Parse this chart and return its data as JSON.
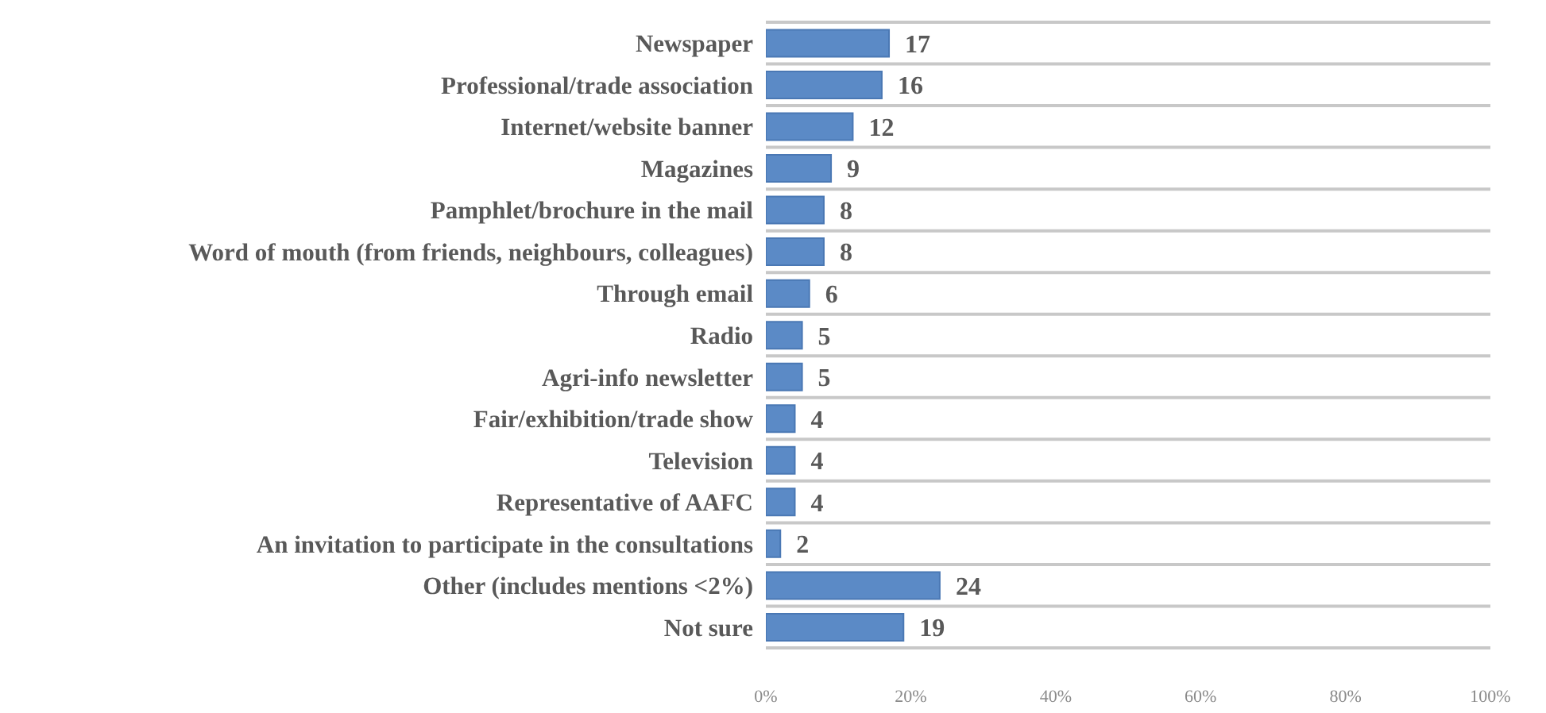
{
  "chart_data": {
    "type": "bar",
    "orientation": "horizontal",
    "categories": [
      "Newspaper",
      "Professional/trade association",
      "Internet/website banner",
      "Magazines",
      "Pamphlet/brochure in the mail",
      "Word of mouth (from friends, neighbours, colleagues)",
      "Through email",
      "Radio",
      "Agri-info newsletter",
      "Fair/exhibition/trade show",
      "Television",
      "Representative of AAFC",
      "An invitation to participate in the consultations",
      "Other (includes mentions <2%)",
      "Not sure"
    ],
    "values": [
      17,
      16,
      12,
      9,
      8,
      8,
      6,
      5,
      5,
      4,
      4,
      4,
      2,
      24,
      19
    ],
    "color": "#5b8ac6",
    "xlim": [
      0,
      100
    ],
    "xticks": [
      {
        "value": 0,
        "label": "0%"
      },
      {
        "value": 20,
        "label": "20%"
      },
      {
        "value": 40,
        "label": "40%"
      },
      {
        "value": 60,
        "label": "60%"
      },
      {
        "value": 80,
        "label": "80%"
      },
      {
        "value": 100,
        "label": "100%"
      }
    ],
    "grid": "y",
    "data_labels": true
  }
}
